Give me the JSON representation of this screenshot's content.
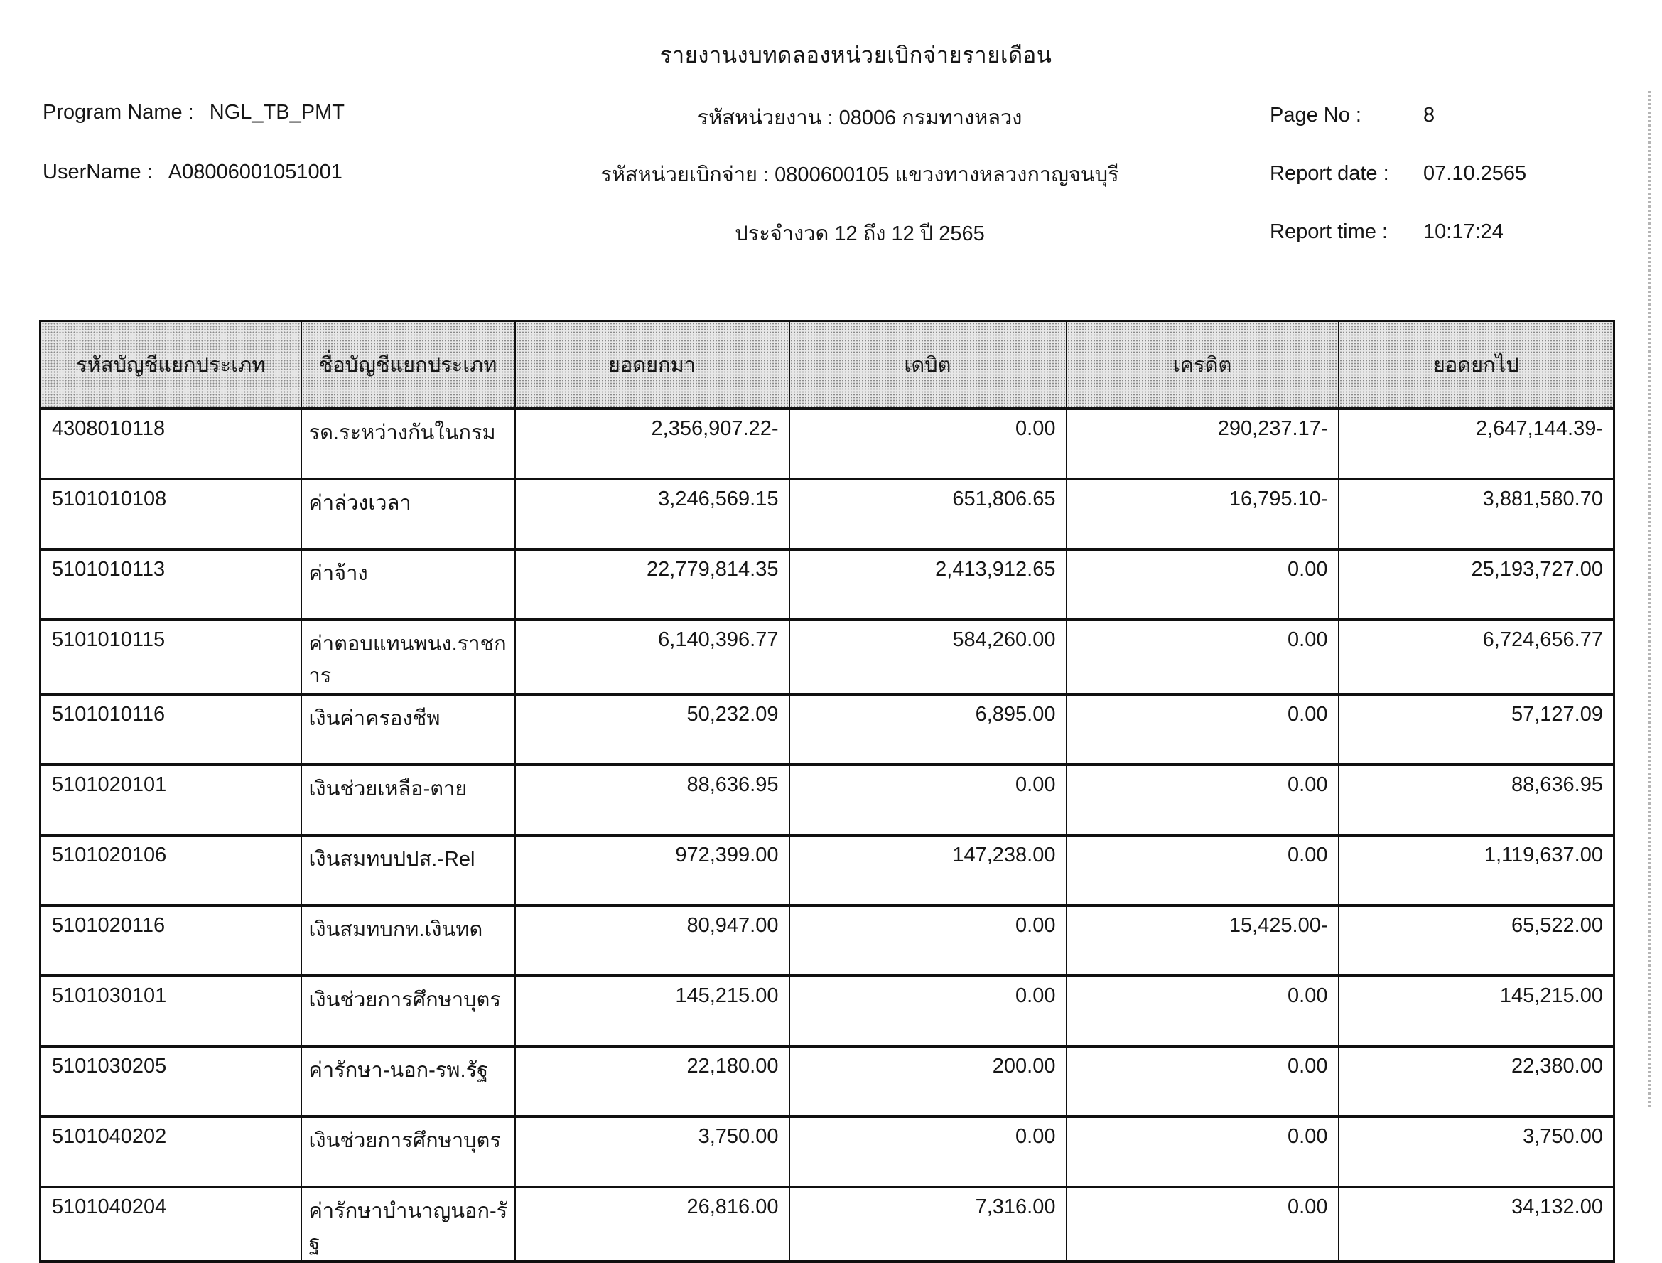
{
  "title": "รายงานงบทดลองหน่วยเบิกจ่ายรายเดือน",
  "header": {
    "left": [
      {
        "label": "Program Name :",
        "value": "NGL_TB_PMT"
      },
      {
        "label": "UserName :",
        "value": "A08006001051001"
      }
    ],
    "center": [
      "รหัสหน่วยงาน : 08006 กรมทางหลวง",
      "รหัสหน่วยเบิกจ่าย : 0800600105 แขวงทางหลวงกาญจนบุรี",
      "ประจำงวด 12 ถึง 12 ปี 2565"
    ],
    "right": [
      {
        "label": "Page No :",
        "value": "8"
      },
      {
        "label": "Report date :",
        "value": "07.10.2565"
      },
      {
        "label": "Report time :",
        "value": "10:17:24"
      }
    ]
  },
  "table": {
    "columns": [
      "รหัสบัญชีแยกประเภท",
      "ชื่อบัญชีแยกประเภท",
      "ยอดยกมา",
      "เดบิต",
      "เครดิต",
      "ยอดยกไป"
    ],
    "rows": [
      [
        "4308010118",
        "รด.ระหว่างกันในกรม",
        "2,356,907.22-",
        "0.00",
        "290,237.17-",
        "2,647,144.39-"
      ],
      [
        "5101010108",
        "ค่าล่วงเวลา",
        "3,246,569.15",
        "651,806.65",
        "16,795.10-",
        "3,881,580.70"
      ],
      [
        "5101010113",
        "ค่าจ้าง",
        "22,779,814.35",
        "2,413,912.65",
        "0.00",
        "25,193,727.00"
      ],
      [
        "5101010115",
        "ค่าตอบแทนพนง.ราชการ",
        "6,140,396.77",
        "584,260.00",
        "0.00",
        "6,724,656.77"
      ],
      [
        "5101010116",
        "เงินค่าครองชีพ",
        "50,232.09",
        "6,895.00",
        "0.00",
        "57,127.09"
      ],
      [
        "5101020101",
        "เงินช่วยเหลือ-ตาย",
        "88,636.95",
        "0.00",
        "0.00",
        "88,636.95"
      ],
      [
        "5101020106",
        "เงินสมทบปปส.-Rel",
        "972,399.00",
        "147,238.00",
        "0.00",
        "1,119,637.00"
      ],
      [
        "5101020116",
        "เงินสมทบกท.เงินทด",
        "80,947.00",
        "0.00",
        "15,425.00-",
        "65,522.00"
      ],
      [
        "5101030101",
        "เงินช่วยการศึกษาบุตร",
        "145,215.00",
        "0.00",
        "0.00",
        "145,215.00"
      ],
      [
        "5101030205",
        "ค่ารักษา-นอก-รพ.รัฐ",
        "22,180.00",
        "200.00",
        "0.00",
        "22,380.00"
      ],
      [
        "5101040202",
        "เงินช่วยการศึกษาบุตร",
        "3,750.00",
        "0.00",
        "0.00",
        "3,750.00"
      ],
      [
        "5101040204",
        "ค่ารักษาบำนาญนอก-รัฐ",
        "26,816.00",
        "7,316.00",
        "0.00",
        "34,132.00"
      ]
    ]
  },
  "colors": {
    "text": "#161616",
    "border": "#101010",
    "header_bg": "#e7e7e7"
  }
}
